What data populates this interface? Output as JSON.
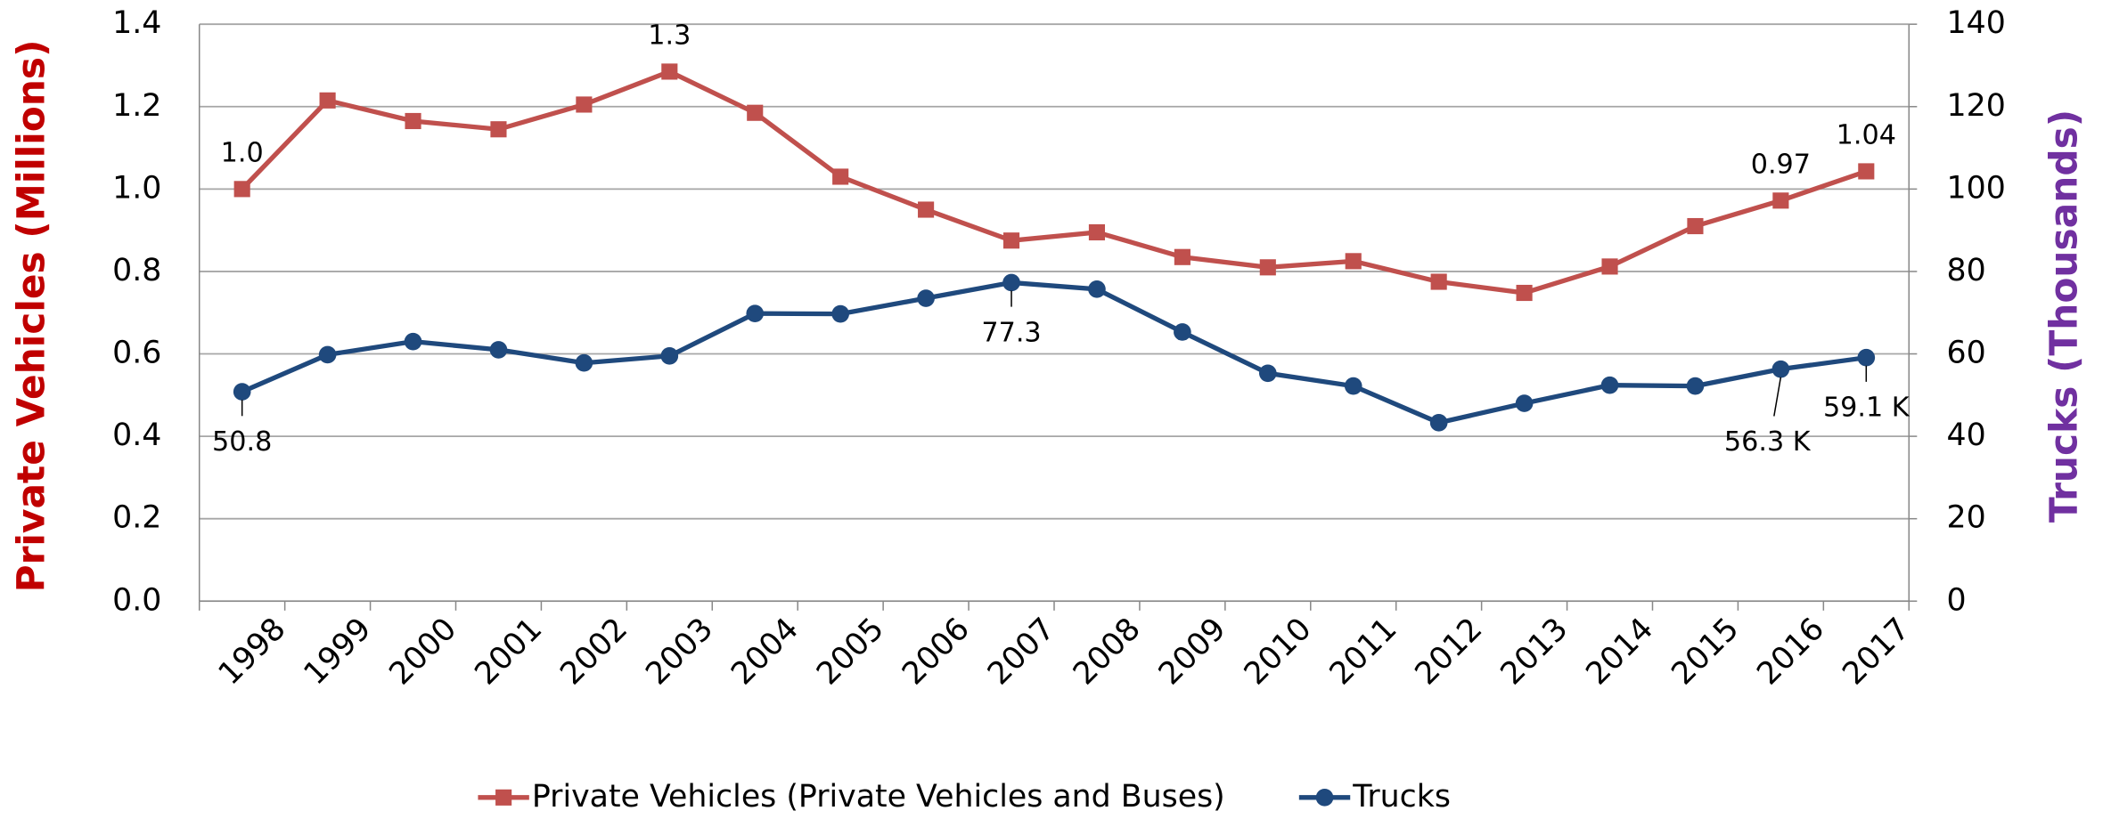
{
  "chart_data": {
    "type": "line",
    "y_label": "Private Vehicles (Millions)",
    "y2_label": "Trucks (Thousands)",
    "categories": [
      "1998",
      "1999",
      "2000",
      "2001",
      "2002",
      "2003",
      "2004",
      "2005",
      "2006",
      "2007",
      "2008",
      "2009",
      "2010",
      "2011",
      "2012",
      "2013",
      "2014",
      "2015",
      "2016",
      "2017"
    ],
    "series": [
      {
        "name": "Private Vehicles (Private Vehicles and Buses)",
        "color": "#c0504d",
        "marker": "square",
        "values": [
          1.0,
          1.215,
          1.165,
          1.145,
          1.205,
          1.285,
          1.185,
          1.03,
          0.95,
          0.875,
          0.895,
          0.835,
          0.81,
          0.825,
          0.775,
          0.748,
          0.812,
          0.91,
          0.972,
          1.043
        ],
        "value_labels": [
          "1.0",
          null,
          null,
          null,
          null,
          "1.3",
          null,
          null,
          null,
          null,
          null,
          null,
          null,
          null,
          null,
          null,
          null,
          null,
          "0.97",
          "1.04"
        ]
      },
      {
        "name": "Trucks",
        "color": "#1f497d",
        "marker": "circle",
        "axis": "y2",
        "values": [
          50.8,
          59.8,
          63,
          61,
          57.8,
          59.5,
          69.8,
          69.7,
          73.5,
          77.3,
          75.7,
          65.3,
          55.3,
          52.2,
          43.3,
          48,
          52.4,
          52.2,
          56.3,
          59.1
        ],
        "value_labels": [
          "50.8",
          null,
          null,
          null,
          null,
          null,
          null,
          null,
          null,
          "77.3",
          null,
          null,
          null,
          null,
          null,
          null,
          null,
          null,
          "56.3 K",
          "59.1 K"
        ]
      }
    ],
    "ylim": [
      0,
      1.4
    ],
    "yticks": [
      {
        "value": 0,
        "label": "0.0"
      },
      0.2,
      0.4,
      0.6,
      0.8,
      {
        "value": 1,
        "label": "1.0"
      },
      1.2,
      1.4
    ],
    "y2lim": [
      0,
      140
    ],
    "y2ticks": [
      0,
      20,
      40,
      60,
      80,
      100,
      120,
      140
    ],
    "y_label_color": "#c00000",
    "y2_label_color": "#7030a0",
    "grid": true,
    "legend": "bottom"
  }
}
